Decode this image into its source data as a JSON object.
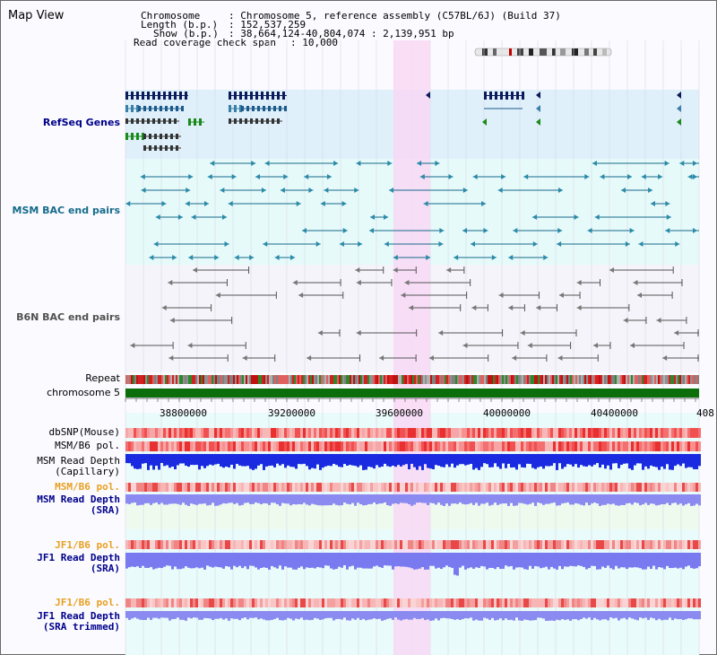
{
  "window": {
    "title": "Map View"
  },
  "info": {
    "chromosome_label": "Chromosome",
    "chromosome_value": ": Chromosome 5, reference assembly (C57BL/6J) (Build 37)",
    "length_label": "Length (b.p.)",
    "length_value": ": 152,537,259",
    "show_label": "Show (b.p.)",
    "show_value": ": 38,664,124-40,804,074 : 2,139,951 bp",
    "coverage_label": "Read coverage check span",
    "coverage_value": ": 10,000"
  },
  "tracks": {
    "refseq": "RefSeq Genes",
    "msm_bac": "MSM BAC end pairs",
    "b6n_bac": "B6N BAC end pairs",
    "repeat": "Repeat",
    "chromosome": "chromosome 5",
    "dbsnp": "dbSNP(Mouse)",
    "msm_b6_pol": "MSM/B6 pol.",
    "msm_depth_cap_1": "MSM Read Depth",
    "msm_depth_cap_2": "(Capillary)",
    "msm_b6_pol2": "MSM/B6 pol.",
    "msm_depth_sra_1": "MSM Read Depth",
    "msm_depth_sra_2": "(SRA)",
    "jf1_b6_pol": "JF1/B6 pol.",
    "jf1_depth_sra_1": "JF1 Read Depth",
    "jf1_depth_sra_2": "(SRA)",
    "jf1_b6_pol2": "JF1/B6 pol.",
    "jf1_depth_trim_1": "JF1 Read Depth",
    "jf1_depth_trim_2": "(SRA trimmed)"
  },
  "axis": {
    "ticks": [
      "38800000",
      "39200000",
      "39600000",
      "40000000",
      "40400000",
      "408"
    ]
  },
  "colors": {
    "refseq_bg": "#dff0fb",
    "msm_bg": "#e6fafa",
    "b6n_bg": "#f4f4fa",
    "highlight": "#f8d8f4",
    "chromosome_bar": "#0b6e0b",
    "navy": "#0a1a5a",
    "teal": "#166b8a",
    "track_blue": "#00008b",
    "orange": "#e8a020"
  }
}
